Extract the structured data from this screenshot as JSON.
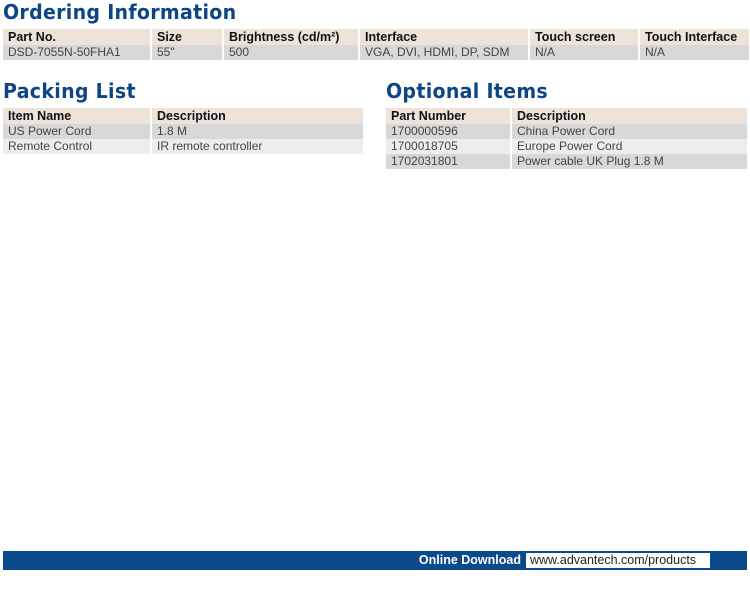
{
  "ordering": {
    "title": "Ordering Information",
    "headers": [
      "Part No.",
      "Size",
      "Brightness (cd/m²)",
      "Interface",
      "Touch screen",
      "Touch Interface"
    ],
    "rows": [
      [
        "DSD-7055N-50FHA1",
        "55\"",
        "500",
        "VGA, DVI, HDMI, DP, SDM",
        "N/A",
        "N/A"
      ]
    ]
  },
  "packing": {
    "title": "Packing List",
    "headers": [
      "Item Name",
      "Description"
    ],
    "rows": [
      [
        "US Power Cord",
        "1.8 M"
      ],
      [
        "Remote Control",
        "IR remote controller"
      ]
    ]
  },
  "optional": {
    "title": "Optional Items",
    "headers": [
      "Part Number",
      "Description"
    ],
    "rows": [
      [
        "1700000596",
        "China Power Cord"
      ],
      [
        "1700018705",
        "Europe Power Cord"
      ],
      [
        "1702031801",
        "Power cable UK Plug 1.8 M"
      ]
    ]
  },
  "footer": {
    "label": "Online Download",
    "url": "www.advantech.com/products"
  },
  "colors": {
    "title": "#0d4585",
    "header_bg": "#ede3d8",
    "footer_bg": "#0b4a8a"
  }
}
